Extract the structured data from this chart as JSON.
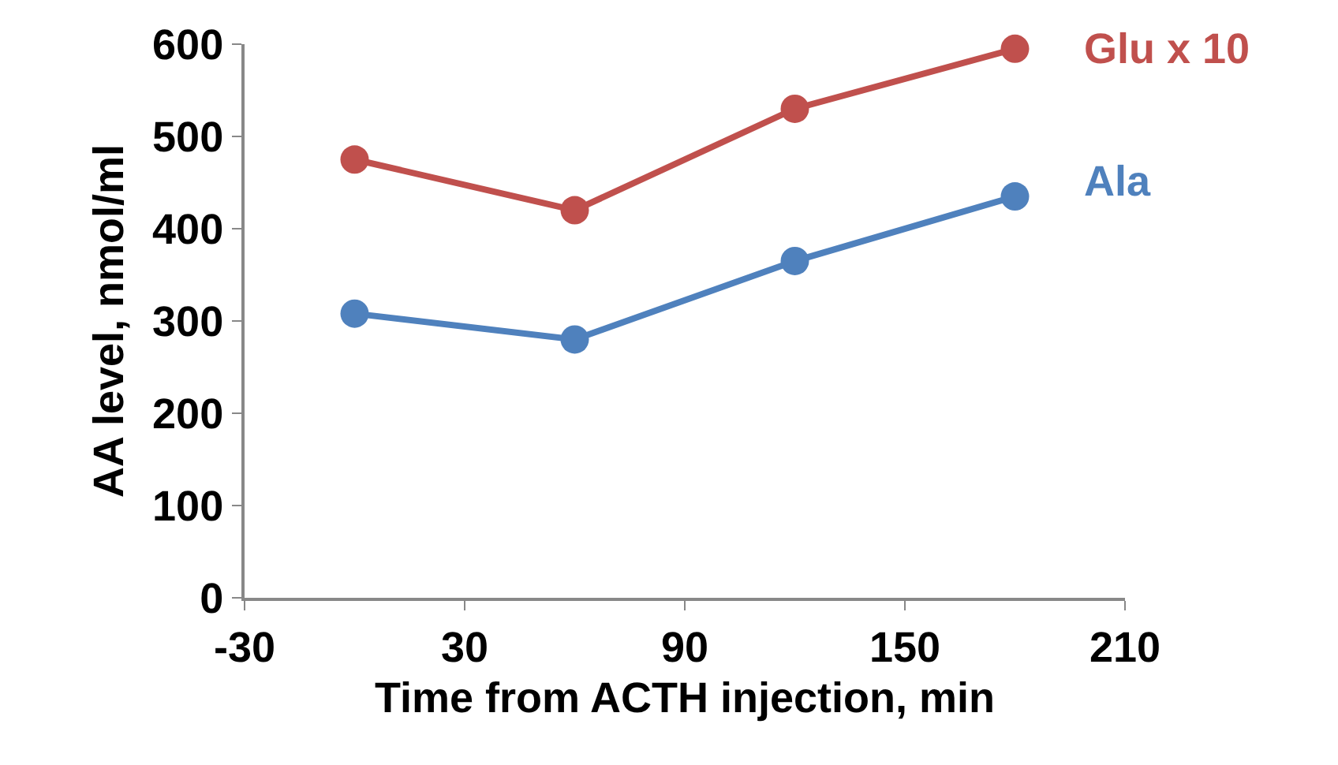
{
  "chart_data": {
    "type": "line",
    "xlabel": "Time from ACTH injection, min",
    "ylabel": "AA level, nmol/ml",
    "x": [
      0,
      60,
      120,
      180
    ],
    "series": [
      {
        "name": "Glu x 10",
        "color": "#c0504d",
        "values": [
          475,
          420,
          530,
          595
        ]
      },
      {
        "name": "Ala",
        "color": "#4f81bd",
        "values": [
          308,
          280,
          365,
          435
        ]
      }
    ],
    "xlim": [
      -30,
      210
    ],
    "xticks": [
      -30,
      30,
      90,
      150,
      210
    ],
    "ylim": [
      0,
      600
    ],
    "yticks": [
      0,
      100,
      200,
      300,
      400,
      500,
      600
    ],
    "grid": false,
    "legend": false,
    "marker": "circle",
    "line_style": "solid"
  }
}
